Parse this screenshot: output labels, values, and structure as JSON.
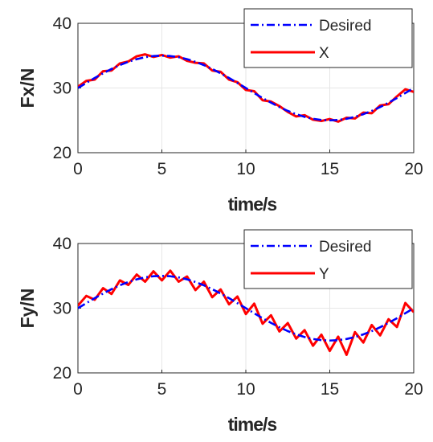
{
  "chart_data": [
    {
      "type": "line",
      "xlabel": "time/s",
      "ylabel": "Fx/N",
      "xlim": [
        0,
        20
      ],
      "ylim": [
        20,
        40
      ],
      "xticks": [
        "0",
        "5",
        "10",
        "15",
        "20"
      ],
      "yticks": [
        "20",
        "30",
        "40"
      ],
      "grid": true,
      "legend_position": "top-right",
      "legend": [
        "Desired",
        "X"
      ],
      "series": [
        {
          "name": "Desired",
          "style": "dash-dot",
          "color": "#0000ff",
          "x": [
            0,
            0.5,
            1,
            1.5,
            2,
            2.5,
            3,
            3.5,
            4,
            4.5,
            5,
            5.5,
            6,
            6.5,
            7,
            7.5,
            8,
            8.5,
            9,
            9.5,
            10,
            10.5,
            11,
            11.5,
            12,
            12.5,
            13,
            13.5,
            14,
            14.5,
            15,
            15.5,
            16,
            16.5,
            17,
            17.5,
            18,
            18.5,
            19,
            19.5,
            20
          ],
          "y": [
            30,
            30.78,
            31.55,
            32.27,
            32.94,
            33.54,
            34.05,
            34.46,
            34.76,
            34.94,
            35,
            34.94,
            34.76,
            34.46,
            34.05,
            33.54,
            32.94,
            32.27,
            31.55,
            30.78,
            30,
            29.22,
            28.45,
            27.73,
            27.06,
            26.46,
            25.95,
            25.54,
            25.24,
            25.06,
            25,
            25.06,
            25.24,
            25.54,
            25.95,
            26.46,
            27.06,
            27.73,
            28.45,
            29.22,
            30
          ]
        },
        {
          "name": "X",
          "style": "solid",
          "color": "#ff0000",
          "x": [
            0,
            0.5,
            1,
            1.5,
            2,
            2.5,
            3,
            3.5,
            4,
            4.5,
            5,
            5.5,
            6,
            6.5,
            7,
            7.5,
            8,
            8.5,
            9,
            9.5,
            10,
            10.5,
            11,
            11.5,
            12,
            12.5,
            13,
            13.5,
            14,
            14.5,
            15,
            15.5,
            16,
            16.5,
            17,
            17.5,
            18,
            18.5,
            19,
            19.5,
            20
          ],
          "y": [
            30.2,
            31.1,
            31.3,
            32.6,
            32.7,
            33.8,
            34.1,
            34.9,
            35.2,
            34.8,
            35.1,
            34.7,
            34.9,
            34.2,
            33.9,
            33.8,
            32.7,
            32.5,
            31.3,
            30.9,
            29.7,
            29.5,
            28.1,
            27.9,
            27.2,
            26.3,
            25.6,
            25.8,
            25.1,
            24.9,
            25.2,
            24.8,
            25.4,
            25.3,
            26.2,
            26.1,
            27.3,
            27.5,
            28.7,
            29.8,
            29.4
          ]
        }
      ]
    },
    {
      "type": "line",
      "xlabel": "time/s",
      "ylabel": "Fy/N",
      "xlim": [
        0,
        20
      ],
      "ylim": [
        20,
        40
      ],
      "xticks": [
        "0",
        "5",
        "10",
        "15",
        "20"
      ],
      "yticks": [
        "20",
        "30",
        "40"
      ],
      "grid": true,
      "legend_position": "top-right",
      "legend": [
        "Desired",
        "Y"
      ],
      "series": [
        {
          "name": "Desired",
          "style": "dash-dot",
          "color": "#0000ff",
          "x": [
            0,
            0.5,
            1,
            1.5,
            2,
            2.5,
            3,
            3.5,
            4,
            4.5,
            5,
            5.5,
            6,
            6.5,
            7,
            7.5,
            8,
            8.5,
            9,
            9.5,
            10,
            10.5,
            11,
            11.5,
            12,
            12.5,
            13,
            13.5,
            14,
            14.5,
            15,
            15.5,
            16,
            16.5,
            17,
            17.5,
            18,
            18.5,
            19,
            19.5,
            20
          ],
          "y": [
            30,
            30.78,
            31.55,
            32.27,
            32.94,
            33.54,
            34.05,
            34.46,
            34.76,
            34.94,
            35,
            34.94,
            34.76,
            34.46,
            34.05,
            33.54,
            32.94,
            32.27,
            31.55,
            30.78,
            30,
            29.22,
            28.45,
            27.73,
            27.06,
            26.46,
            25.95,
            25.54,
            25.24,
            25.06,
            25,
            25.06,
            25.24,
            25.54,
            25.95,
            26.46,
            27.06,
            27.73,
            28.45,
            29.22,
            30
          ]
        },
        {
          "name": "Y",
          "style": "solid",
          "color": "#ff0000",
          "x": [
            0,
            0.5,
            1,
            1.5,
            2,
            2.5,
            3,
            3.5,
            4,
            4.5,
            5,
            5.5,
            6,
            6.5,
            7,
            7.5,
            8,
            8.5,
            9,
            9.5,
            10,
            10.5,
            11,
            11.5,
            12,
            12.5,
            13,
            13.5,
            14,
            14.5,
            15,
            15.5,
            16,
            16.5,
            17,
            17.5,
            18,
            18.5,
            19,
            19.5,
            20
          ],
          "y": [
            30.4,
            31.9,
            31.3,
            33.1,
            32.2,
            34.3,
            33.6,
            35.2,
            34.1,
            35.7,
            34.3,
            35.8,
            34.1,
            34.9,
            32.8,
            34.1,
            31.7,
            32.9,
            30.6,
            31.8,
            29.1,
            30.7,
            27.6,
            28.9,
            26.4,
            27.7,
            25.3,
            26.6,
            24.2,
            25.9,
            23.4,
            25.6,
            22.8,
            26.3,
            24.7,
            27.4,
            25.8,
            28.3,
            27.1,
            30.8,
            29.4
          ]
        }
      ]
    }
  ]
}
